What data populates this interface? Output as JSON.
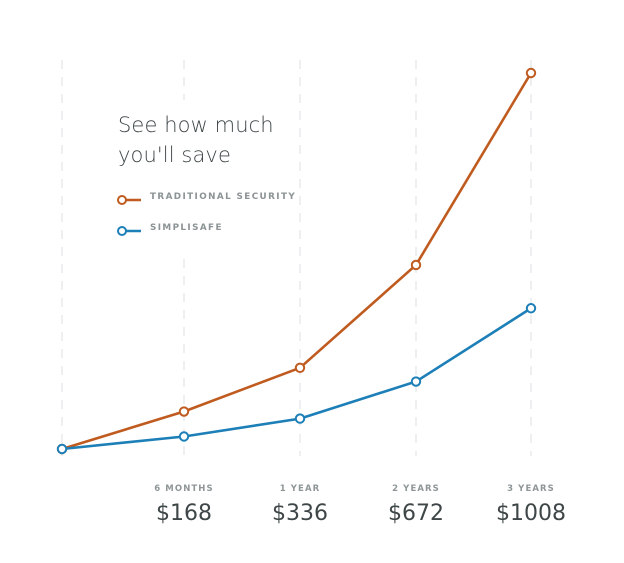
{
  "chart_data": {
    "type": "line",
    "title_lines": [
      "See how much",
      "you'll save"
    ],
    "x": [
      "",
      "6 MONTHS",
      "1 YEAR",
      "2 YEARS",
      "3 YEARS"
    ],
    "values_labels": [
      "",
      "$168",
      "$336",
      "$672",
      "$1008"
    ],
    "series": [
      {
        "name": "TRADITIONAL SECURITY",
        "color": "#c05b1f",
        "values": [
          0,
          90,
          195,
          442,
          903
        ]
      },
      {
        "name": "SIMPLISAFE",
        "color": "#1d7fb7",
        "values": [
          0,
          30,
          73,
          162,
          338
        ]
      }
    ],
    "ylim": [
      0,
      903
    ],
    "grid": true,
    "legend_position": "upper-left"
  }
}
